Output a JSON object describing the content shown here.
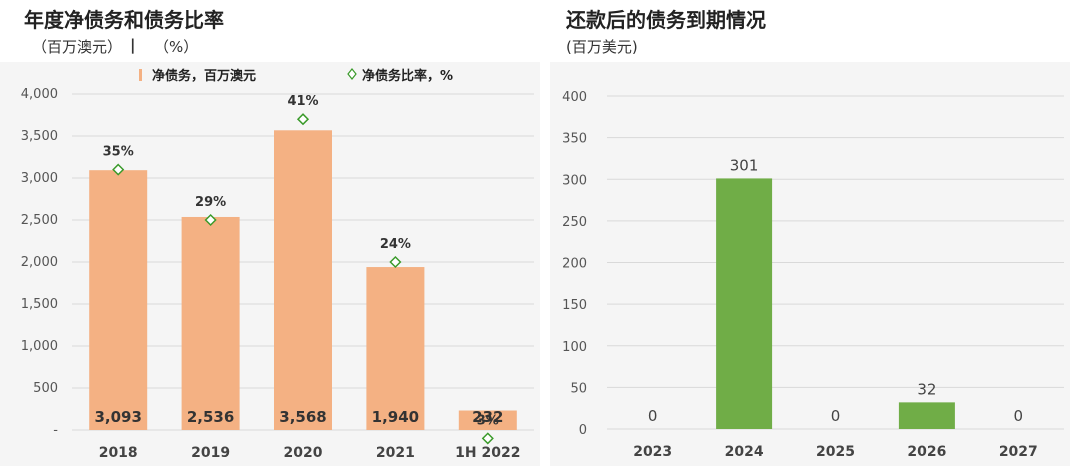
{
  "left": {
    "title": "年度净债务和债务比率",
    "units_a": "（百万澳元）",
    "units_sep": "|",
    "units_b": "（%）"
  },
  "right": {
    "title": "还款后的债务到期情况",
    "units": "(百万美元)"
  },
  "colors": {
    "bar_left": "#f4b183",
    "bar_right": "#70ad47",
    "marker": "#3a9a2a",
    "grid": "#d9d9d9",
    "background": "#f5f5f5"
  },
  "chart_data": [
    {
      "type": "bar",
      "categories": [
        "2018",
        "2019",
        "2020",
        "2021",
        "1H 2022"
      ],
      "series": [
        {
          "name": "净债务，百万澳元",
          "values": [
            3093,
            2536,
            3568,
            1940,
            232
          ],
          "labels": [
            "3,093",
            "2,536",
            "3,568",
            "1,940",
            "232"
          ]
        },
        {
          "name": "净债务比率，%",
          "values": [
            35,
            29,
            41,
            24,
            3
          ],
          "labels": [
            "35%",
            "29%",
            "41%",
            "24%",
            "3%"
          ],
          "marker": "diamond"
        }
      ],
      "yticks": [
        0,
        500,
        1000,
        1500,
        2000,
        2500,
        3000,
        3500,
        4000
      ],
      "ytick_labels": [
        "-",
        "500",
        "1,000",
        "1,500",
        "2,000",
        "2,500",
        "3,000",
        "3,500",
        "4,000"
      ],
      "ylim": [
        0,
        4000
      ],
      "grid": true,
      "legend": "top"
    },
    {
      "type": "bar",
      "categories": [
        "2023",
        "2024",
        "2025",
        "2026",
        "2027"
      ],
      "values": [
        0,
        301,
        0,
        32,
        0
      ],
      "labels": [
        "0",
        "301",
        "0",
        "32",
        "0"
      ],
      "yticks": [
        0,
        50,
        100,
        150,
        200,
        250,
        300,
        350,
        400
      ],
      "ylim": [
        0,
        400
      ],
      "grid": true
    }
  ]
}
